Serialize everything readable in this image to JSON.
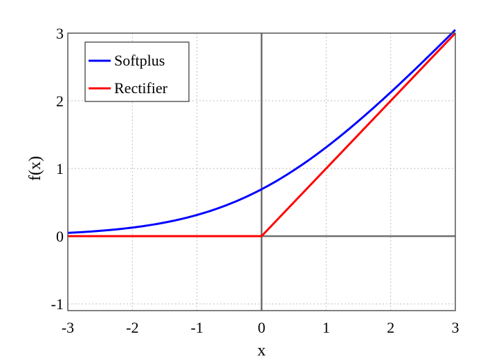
{
  "chart_data": {
    "type": "line",
    "title": "",
    "xlabel": "x",
    "ylabel": "f(x)",
    "xlim": [
      -3,
      3
    ],
    "ylim": [
      -1.1,
      3
    ],
    "xticks": [
      -3,
      -2,
      -1,
      0,
      1,
      2,
      3
    ],
    "yticks": [
      -1,
      0,
      1,
      2,
      3
    ],
    "xtick_labels": [
      "-3",
      "-2",
      "-1",
      "0",
      "1",
      "2",
      "3"
    ],
    "ytick_labels": [
      "-1",
      "0",
      "1",
      "2",
      "3"
    ],
    "grid": true,
    "legend_position": "top-left",
    "series": [
      {
        "name": "Softplus",
        "color": "#0000ff",
        "x": [
          -3,
          -2.5,
          -2,
          -1.5,
          -1,
          -0.5,
          0,
          0.5,
          1,
          1.5,
          2,
          2.5,
          3
        ],
        "y": [
          0.049,
          0.079,
          0.127,
          0.201,
          0.313,
          0.474,
          0.693,
          0.974,
          1.313,
          1.701,
          2.127,
          2.579,
          3.049
        ]
      },
      {
        "name": "Rectifier",
        "color": "#ff0000",
        "x": [
          -3,
          0,
          3
        ],
        "y": [
          0,
          0,
          3
        ]
      }
    ]
  }
}
